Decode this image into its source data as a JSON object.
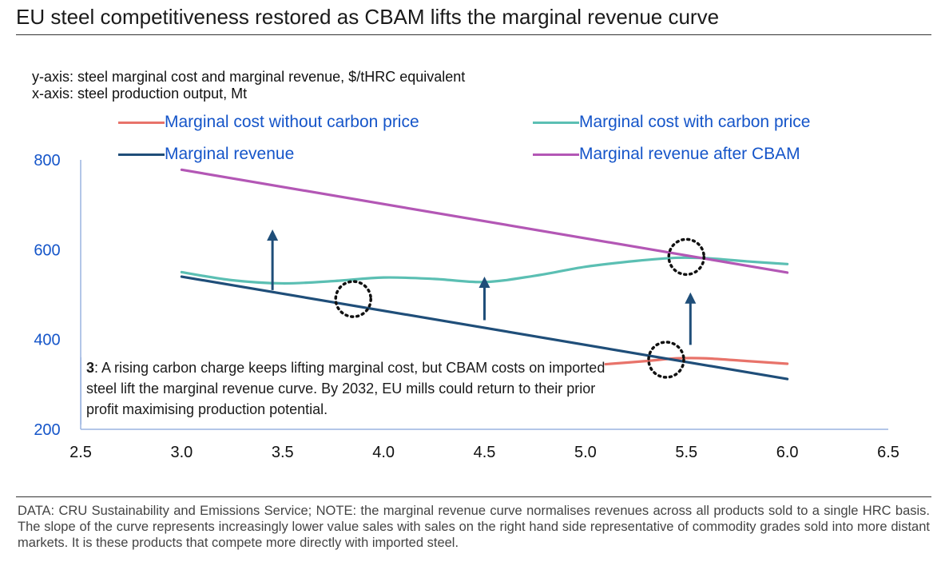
{
  "title": "EU steel competitiveness restored as CBAM lifts the marginal revenue curve",
  "y_axis_note": "y-axis: steel marginal cost and marginal revenue, $/tHRC equivalent",
  "x_axis_note": "x-axis: steel production output, Mt",
  "annotation": {
    "number": "3",
    "text": ": A rising carbon charge keeps lifting marginal cost, but CBAM costs on imported steel lift the marginal revenue curve. By 2032, EU mills could return to their prior profit maximising production potential."
  },
  "source_note": "DATA: CRU Sustainability and Emissions Service; NOTE: the marginal revenue curve normalises revenues across all products sold to a single HRC basis. The slope of the curve represents increasingly lower value sales with sales on the right hand side representative of commodity grades sold into more distant markets. It is these products that compete more directly with imported steel.",
  "chart_data": {
    "type": "line",
    "xlim": [
      2.5,
      6.5
    ],
    "ylim": [
      200,
      800
    ],
    "x_ticks": [
      "2.5",
      "3.0",
      "3.5",
      "4.0",
      "4.5",
      "5.0",
      "5.5",
      "6.0",
      "6.5"
    ],
    "y_ticks": [
      "800",
      "600",
      "400",
      "200"
    ],
    "x_tick_values": [
      2.5,
      3.0,
      3.5,
      4.0,
      4.5,
      5.0,
      5.5,
      6.0,
      6.5
    ],
    "y_tick_values": [
      800,
      600,
      400,
      200
    ],
    "series": [
      {
        "name": "Marginal cost without carbon price",
        "color": "#e8736a",
        "x": [
          5.1,
          5.3,
          5.45,
          5.6,
          5.8,
          6.0
        ],
        "y": [
          345,
          352,
          358,
          358,
          352,
          346
        ]
      },
      {
        "name": "Marginal cost with carbon price",
        "color": "#5bbfb3",
        "x": [
          3.0,
          3.25,
          3.5,
          3.75,
          4.0,
          4.25,
          4.5,
          4.75,
          5.0,
          5.25,
          5.45,
          5.6,
          5.8,
          6.0
        ],
        "y": [
          550,
          532,
          525,
          530,
          538,
          535,
          528,
          542,
          562,
          575,
          582,
          581,
          574,
          568
        ]
      },
      {
        "name": "Marginal revenue",
        "color": "#1f4e79",
        "x": [
          3.0,
          6.0
        ],
        "y": [
          540,
          312
        ]
      },
      {
        "name": "Marginal revenue after CBAM",
        "color": "#b357b5",
        "x": [
          3.0,
          6.0
        ],
        "y": [
          778,
          549
        ]
      }
    ],
    "highlights": [
      {
        "x": 3.85,
        "y": 490
      },
      {
        "x": 5.4,
        "y": 355
      },
      {
        "x": 5.5,
        "y": 584
      }
    ],
    "arrows": [
      {
        "x": 3.45,
        "from": 510,
        "to": 645
      },
      {
        "x": 4.5,
        "from": 443,
        "to": 540
      },
      {
        "x": 5.52,
        "from": 388,
        "to": 505
      }
    ]
  }
}
